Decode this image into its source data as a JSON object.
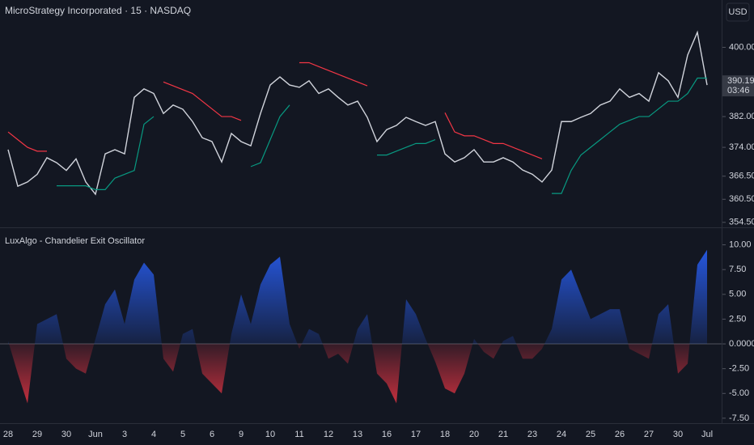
{
  "chart_data": [
    {
      "type": "line",
      "title": "MicroStrategy Incorporated · 15 · NASDAQ",
      "currency": "USD",
      "ylim": [
        353.2,
        412.3
      ],
      "yticks": [
        {
          "value": 354.5,
          "label": "354.50"
        },
        {
          "value": 360.5,
          "label": "360.50"
        },
        {
          "value": 366.5,
          "label": "366.50"
        },
        {
          "value": 374,
          "label": "374.00"
        },
        {
          "value": 382,
          "label": "382.00"
        },
        {
          "value": 400,
          "label": "400.00"
        }
      ],
      "last_price": 390.19,
      "countdown": "03:46",
      "series": [
        {
          "color": "#d1d4dc",
          "values": [
            373.4,
            363.9,
            365,
            367,
            371.3,
            370,
            368,
            371,
            365,
            361.8,
            372.3,
            373.4,
            372.3,
            387,
            389.2,
            388,
            382.8,
            385,
            383.9,
            380.7,
            376.5,
            375.5,
            370.2,
            377.6,
            375.5,
            374.4,
            382.8,
            390.2,
            392.3,
            390.2,
            389.6,
            391.3,
            388,
            389.2,
            387,
            385,
            386,
            381.8,
            375.5,
            378.6,
            379.7,
            381.8,
            380.7,
            379.7,
            380.7,
            372.3,
            370.2,
            371.3,
            373.4,
            370.2,
            370.2,
            371.3,
            370.2,
            368.1,
            367,
            365,
            368.1,
            380.7,
            380.7,
            381.8,
            382.8,
            385,
            386,
            389.2,
            387,
            388,
            386,
            393.4,
            391.3,
            387,
            398,
            403.9,
            390.19
          ]
        },
        {
          "color": "#f23645",
          "values": [
            378,
            376,
            374,
            373,
            373,
            null,
            null,
            null,
            null,
            null,
            null,
            null,
            null,
            null,
            null,
            null,
            391,
            390,
            389,
            388,
            386,
            384,
            382,
            382,
            381,
            null,
            null,
            null,
            null,
            null,
            396,
            396,
            395,
            394,
            393,
            392,
            391,
            390,
            null,
            null,
            null,
            null,
            null,
            null,
            null,
            383,
            378,
            377,
            377,
            376,
            375,
            375,
            374,
            373,
            372,
            371,
            null,
            null,
            null,
            null,
            null,
            null,
            null,
            null,
            null,
            null,
            null,
            null,
            null,
            null,
            null,
            null,
            null
          ]
        },
        {
          "color": "#089981",
          "values": [
            null,
            null,
            null,
            null,
            null,
            364,
            364,
            364,
            364,
            363,
            363,
            366,
            367,
            368,
            380,
            382,
            null,
            null,
            null,
            null,
            null,
            null,
            null,
            null,
            null,
            369,
            370,
            376,
            382,
            385,
            null,
            null,
            null,
            null,
            null,
            null,
            null,
            null,
            372,
            372,
            373,
            374,
            375,
            375,
            376,
            null,
            null,
            null,
            null,
            null,
            null,
            null,
            null,
            null,
            null,
            null,
            362,
            362,
            368,
            372,
            374,
            376,
            378,
            380,
            381,
            382,
            382,
            384,
            386,
            386,
            388,
            392,
            392
          ]
        }
      ]
    },
    {
      "type": "area",
      "title": "LuxAlgo - Chandelier Exit Oscillator",
      "ylim": [
        -8,
        11.6
      ],
      "yticks": [
        {
          "value": -7.5,
          "label": "-7.50"
        },
        {
          "value": -5,
          "label": "-5.00"
        },
        {
          "value": -2.5,
          "label": "-2.50"
        },
        {
          "value": 0,
          "label": "0.0000"
        },
        {
          "value": 2.5,
          "label": "2.50"
        },
        {
          "value": 5,
          "label": "5.00"
        },
        {
          "value": 7.5,
          "label": "7.50"
        },
        {
          "value": 10,
          "label": "10.00"
        }
      ],
      "colors": {
        "positive": "#2962ff",
        "negative": "#f23645"
      },
      "categories": [
        "28",
        null,
        null,
        "29",
        null,
        null,
        "30",
        null,
        null,
        "Jun",
        null,
        null,
        "3",
        null,
        null,
        "4",
        null,
        null,
        "5",
        null,
        null,
        "6",
        null,
        null,
        "9",
        null,
        null,
        "10",
        null,
        null,
        "11",
        null,
        null,
        "12",
        null,
        null,
        "13",
        null,
        null,
        "16",
        null,
        null,
        "17",
        null,
        null,
        "18",
        null,
        null,
        "20",
        null,
        null,
        "21",
        null,
        null,
        "23",
        null,
        null,
        "24",
        null,
        null,
        "25",
        null,
        null,
        "26",
        null,
        null,
        "27",
        null,
        null,
        "30",
        null,
        null,
        "Jul"
      ],
      "values": [
        0.3,
        -3,
        -6,
        2,
        2.5,
        3,
        -1.5,
        -2.5,
        -3,
        0.5,
        4,
        5.5,
        2,
        6.5,
        8.2,
        7,
        -1.5,
        -2.8,
        1,
        1.5,
        -3,
        -4,
        -5,
        1,
        5,
        2,
        6,
        8,
        8.8,
        2,
        -0.5,
        1.5,
        1,
        -1.5,
        -1,
        -2,
        1.5,
        3,
        -3,
        -4,
        -6,
        4.5,
        3,
        0.5,
        -1.8,
        -4.5,
        -5,
        -3,
        0.5,
        -0.8,
        -1.5,
        0.3,
        0.8,
        -1.5,
        -1.5,
        -0.5,
        1.5,
        6.5,
        7.5,
        5,
        2.5,
        3,
        3.5,
        3.5,
        -0.5,
        -1,
        -1.5,
        3,
        4,
        -3,
        -2,
        8,
        9.5
      ]
    }
  ]
}
